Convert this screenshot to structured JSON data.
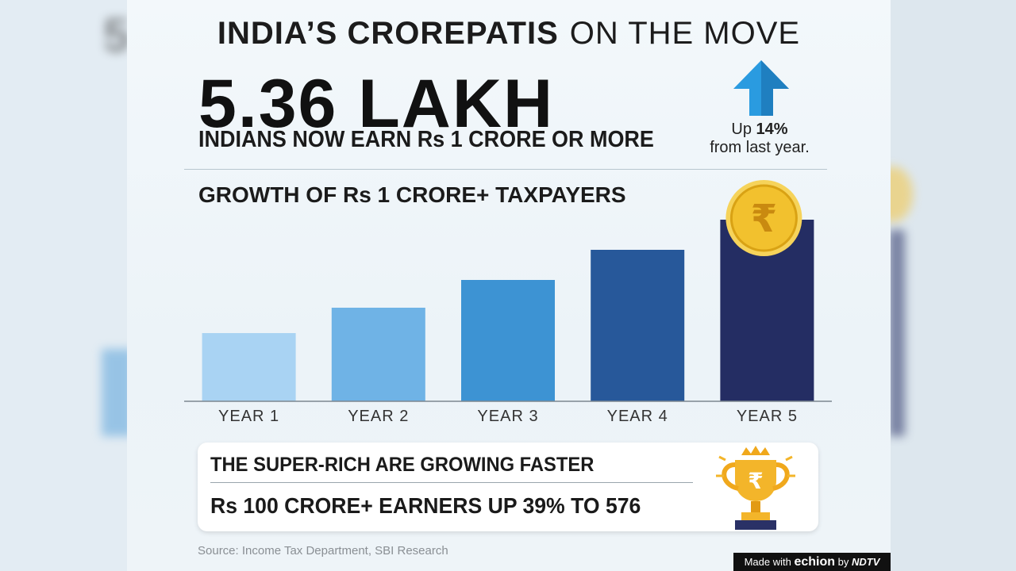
{
  "headline": {
    "bold": "INDIA’S CROREPATIS",
    "normal": "ON THE MOVE"
  },
  "big_number": "5.36 LAKH",
  "subline": "INDIANS NOW EARN Rs 1 CRORE OR MORE",
  "change": {
    "prefix": "Up",
    "value": "14%",
    "suffix": "from last year."
  },
  "chart_title": "GROWTH OF Rs 1 CRORE+ TAXPAYERS",
  "chart_data": {
    "type": "bar",
    "title": "GROWTH OF Rs 1 CRORE+ TAXPAYERS",
    "categories": [
      "YEAR 1",
      "YEAR 2",
      "YEAR 3",
      "YEAR 4",
      "YEAR 5"
    ],
    "values": [
      86,
      118,
      153,
      191,
      229
    ],
    "colors": [
      "#a9d3f3",
      "#6fb3e6",
      "#3d93d3",
      "#27589a",
      "#242d63"
    ],
    "ylim": [
      0,
      240
    ],
    "xlabel": "",
    "ylabel": "",
    "grid": false,
    "legend": "none"
  },
  "highlight": {
    "line1": "THE SUPER-RICH ARE GROWING FASTER",
    "line2": "Rs 100 CRORE+ EARNERS UP 39% TO 576"
  },
  "icons": [
    "up-arrow-icon",
    "rupee-coin-icon",
    "trophy-icon"
  ],
  "source": "Source: Income Tax Department, SBI Research",
  "brand": {
    "made_with": "Made with",
    "echion": "echion",
    "by": "by",
    "ndtv": "NDTV"
  },
  "colors": {
    "accent_arrow": "#2a9be0",
    "coin": "#f2c12e",
    "trophy": "#f0a81c"
  }
}
